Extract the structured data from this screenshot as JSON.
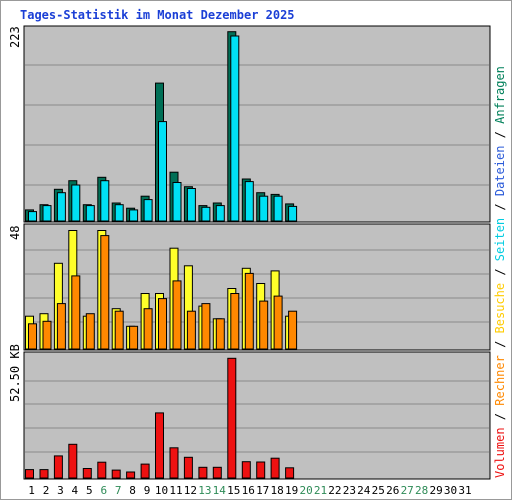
{
  "chart_data": {
    "type": "bar",
    "title": "Tages-Statistik im Monat Dezember 2025",
    "days": [
      "1",
      "2",
      "3",
      "4",
      "5",
      "6",
      "7",
      "8",
      "9",
      "10",
      "11",
      "12",
      "13",
      "14",
      "15",
      "16",
      "17",
      "18",
      "19",
      "20",
      "21",
      "22",
      "23",
      "24",
      "25",
      "26",
      "27",
      "28",
      "29",
      "30",
      "31"
    ],
    "weekend_days": [
      "6",
      "7",
      "13",
      "14",
      "20",
      "21",
      "27",
      "28"
    ],
    "top_panel": {
      "max_label": "223",
      "ymax": 223,
      "series": [
        {
          "name": "Anfragen",
          "color": "#006F56",
          "values": [
            13,
            19,
            37,
            47,
            19,
            51,
            21,
            15,
            29,
            161,
            57,
            40,
            18,
            21,
            221,
            49,
            33,
            31,
            20,
            0,
            0,
            0,
            0,
            0,
            0,
            0,
            0,
            0,
            0,
            0,
            0
          ]
        },
        {
          "name": "Seiten",
          "color": "#00E0F4",
          "values": [
            11,
            18,
            33,
            42,
            18,
            47,
            19,
            13,
            25,
            116,
            45,
            38,
            16,
            18,
            216,
            46,
            29,
            29,
            17,
            0,
            0,
            0,
            0,
            0,
            0,
            0,
            0,
            0,
            0,
            0,
            0
          ]
        }
      ]
    },
    "middle_panel": {
      "max_label": "48",
      "ymax": 48,
      "series": [
        {
          "name": "Dateien",
          "color": "#FFFF2A",
          "values": [
            13,
            14,
            34,
            47,
            13,
            47,
            16,
            9,
            22,
            22,
            40,
            33,
            17,
            12,
            24,
            32,
            26,
            31,
            13,
            0,
            0,
            0,
            0,
            0,
            0,
            0,
            0,
            0,
            0,
            0,
            0
          ]
        },
        {
          "name": "Besuche",
          "color": "#FF8800",
          "values": [
            10,
            11,
            18,
            29,
            14,
            45,
            15,
            9,
            16,
            20,
            27,
            15,
            18,
            12,
            22,
            30,
            19,
            21,
            15,
            0,
            0,
            0,
            0,
            0,
            0,
            0,
            0,
            0,
            0,
            0,
            0
          ]
        }
      ]
    },
    "bottom_panel": {
      "max_label": "52.50 KB",
      "ymax": 52.5,
      "series": [
        {
          "name": "Volumen",
          "color": "#EE1111",
          "values": [
            3.6,
            3.6,
            9.5,
            14.5,
            4.1,
            6.8,
            3.4,
            2.6,
            6.0,
            28.0,
            13.0,
            8.9,
            4.6,
            4.6,
            51.5,
            7.0,
            6.9,
            8.5,
            4.4,
            0,
            0,
            0,
            0,
            0,
            0,
            0,
            0,
            0,
            0,
            0,
            0
          ]
        }
      ]
    },
    "legend": [
      {
        "text": "Volumen",
        "color": "#EE1111"
      },
      {
        "text": "Rechner",
        "color": "#FF8800"
      },
      {
        "text": "Besuche",
        "color": "#FFCC00"
      },
      {
        "text": "Seiten",
        "color": "#00CCE0"
      },
      {
        "text": "Dateien",
        "color": "#2B5BD9"
      },
      {
        "text": "Anfragen",
        "color": "#00805A"
      }
    ],
    "legend_separator": "/"
  }
}
